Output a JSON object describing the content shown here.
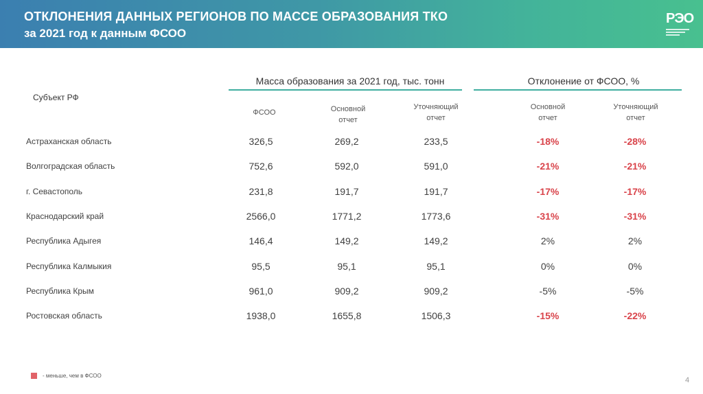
{
  "header": {
    "title": "ОТКЛОНЕНИЯ ДАННЫХ РЕГИОНОВ ПО МАССЕ ОБРАЗОВАНИЯ ТКО",
    "subtitle": "за 2021 год к данным ФСОО",
    "logo_text": "РЭО"
  },
  "table": {
    "subject_header": "Субъект РФ",
    "group1_header": "Масса образования за 2021 год, тыс. тонн",
    "group2_header": "Отклонение от ФСОО, %",
    "columns": {
      "fsoo": "ФСОО",
      "main_report_1": "Основной",
      "main_report_2": "отчет",
      "clarify_report_1": "Уточняющий",
      "clarify_report_2": "отчет"
    },
    "rows": [
      {
        "region": "Астраханская область",
        "fsoo": "326,5",
        "main": "269,2",
        "clarify": "233,5",
        "dev_main": "-18%",
        "dev_clarify": "-28%"
      },
      {
        "region": "Волгоградская область",
        "fsoo": "752,6",
        "main": "592,0",
        "clarify": "591,0",
        "dev_main": "-21%",
        "dev_clarify": "-21%"
      },
      {
        "region": "г. Севастополь",
        "fsoo": "231,8",
        "main": "191,7",
        "clarify": "191,7",
        "dev_main": "-17%",
        "dev_clarify": "-17%"
      },
      {
        "region": "Краснодарский край",
        "fsoo": "2566,0",
        "main": "1771,2",
        "clarify": "1773,6",
        "dev_main": "-31%",
        "dev_clarify": "-31%"
      },
      {
        "region": "Республика Адыгея",
        "fsoo": "146,4",
        "main": "149,2",
        "clarify": "149,2",
        "dev_main": "2%",
        "dev_clarify": "2%"
      },
      {
        "region": "Республика Калмыкия",
        "fsoo": "95,5",
        "main": "95,1",
        "clarify": "95,1",
        "dev_main": "0%",
        "dev_clarify": "0%"
      },
      {
        "region": "Республика Крым",
        "fsoo": "961,0",
        "main": "909,2",
        "clarify": "909,2",
        "dev_main": "-5%",
        "dev_clarify": "-5%"
      },
      {
        "region": "Ростовская область",
        "fsoo": "1938,0",
        "main": "1655,8",
        "clarify": "1506,3",
        "dev_main": "-15%",
        "dev_clarify": "-22%"
      }
    ],
    "highlighted_cells": [
      [
        true,
        true
      ],
      [
        true,
        true
      ],
      [
        true,
        true
      ],
      [
        true,
        true
      ],
      [
        false,
        false
      ],
      [
        false,
        false
      ],
      [
        false,
        false
      ],
      [
        true,
        true
      ]
    ]
  },
  "legend": {
    "text": "- меньше, чем в ФСОО",
    "color": "#e16368"
  },
  "page_number": "4",
  "colors": {
    "accent_line": "#3fae9f",
    "negative": "#d9434a",
    "header_start": "#3b7fb0",
    "header_end": "#48c08f"
  }
}
